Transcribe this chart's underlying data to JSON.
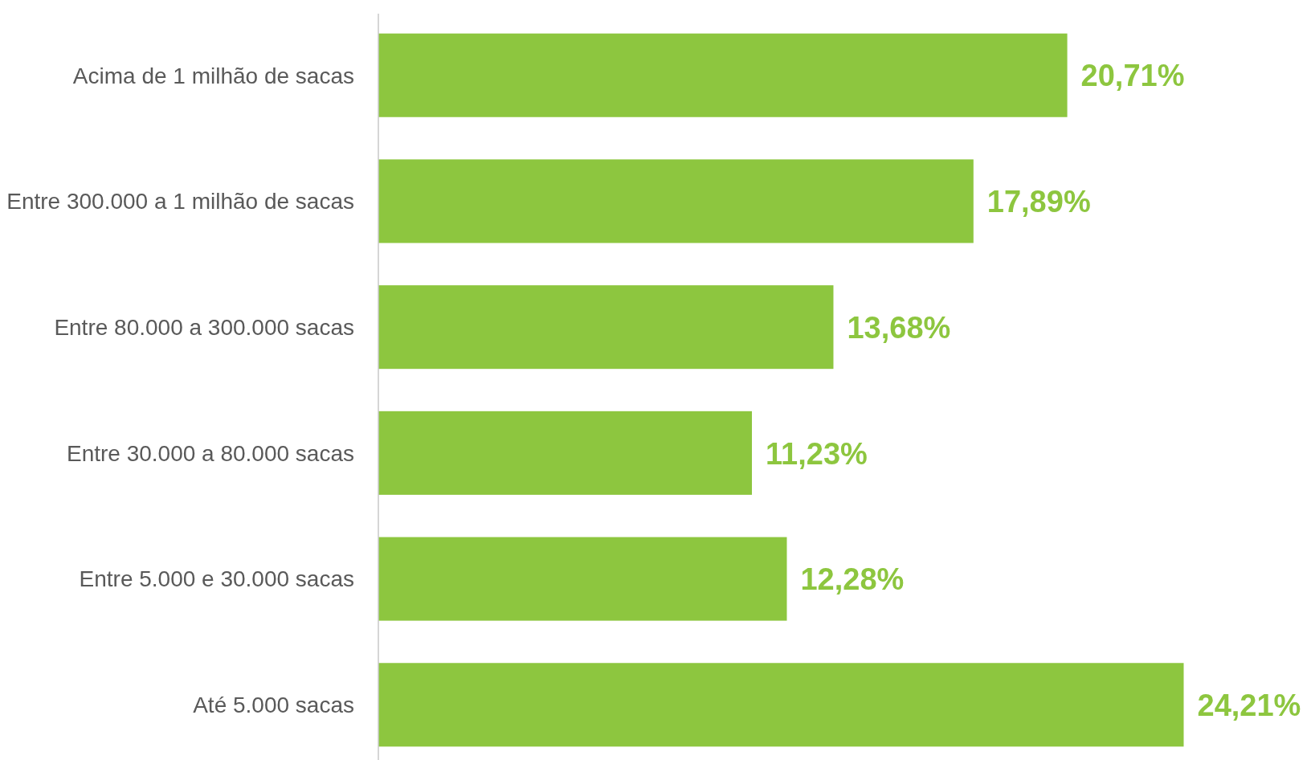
{
  "chart_data": {
    "type": "bar",
    "orientation": "horizontal",
    "categories": [
      "Acima de 1 milhão de sacas",
      "Entre 300.000 a 1 milhão de sacas",
      "Entre 80.000 a 300.000 sacas",
      "Entre 30.000 a 80.000 sacas",
      "Entre 5.000 e 30.000 sacas",
      "Até 5.000 sacas"
    ],
    "values": [
      20.71,
      17.89,
      13.68,
      11.23,
      12.28,
      24.21
    ],
    "value_labels": [
      "20,71%",
      "17,89%",
      "13,68%",
      "11,23%",
      "12,28%",
      "24,21%"
    ],
    "color": "#8dc63f",
    "tick_labels": "y"
  }
}
